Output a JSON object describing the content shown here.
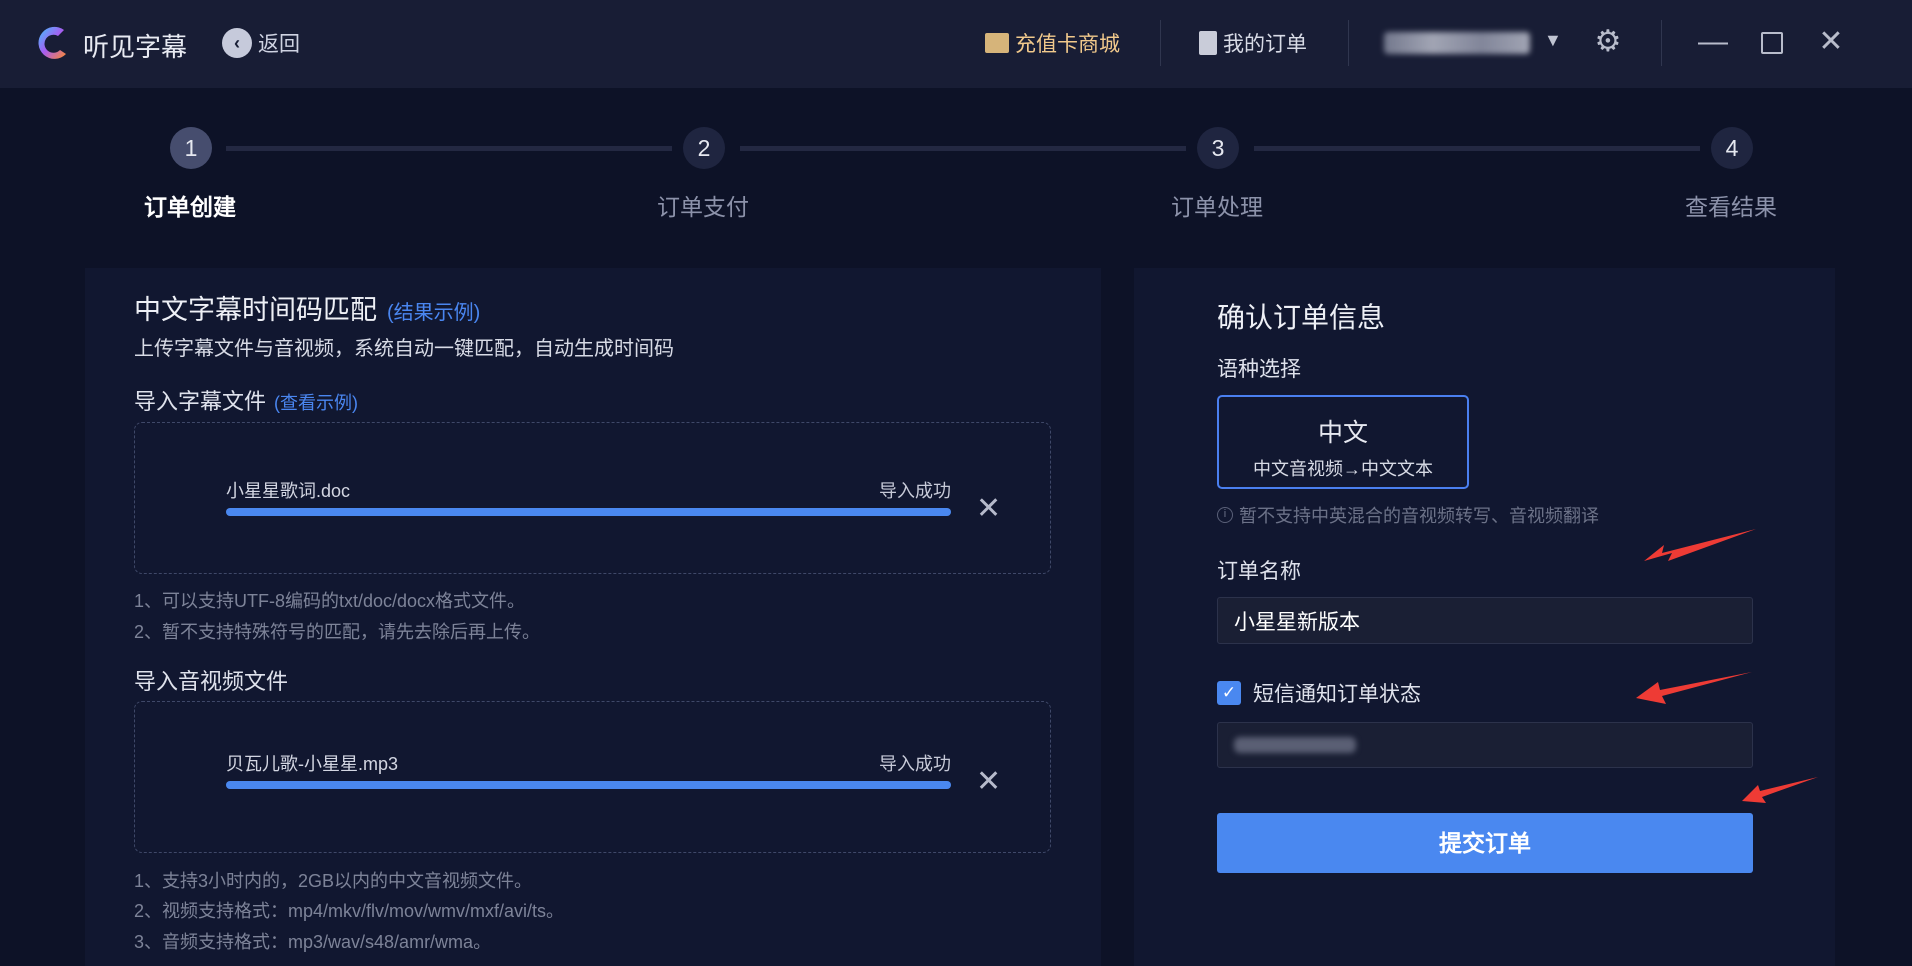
{
  "header": {
    "app_title": "听见字幕",
    "back_label": "返回",
    "recharge_label": "充值卡商城",
    "orders_label": "我的订单",
    "recharge_color": "#f1c98c"
  },
  "steps": [
    {
      "num": "1",
      "label": "订单创建",
      "active": true
    },
    {
      "num": "2",
      "label": "订单支付"
    },
    {
      "num": "3",
      "label": "订单处理"
    },
    {
      "num": "4",
      "label": "查看结果"
    }
  ],
  "left": {
    "title": "中文字幕时间码匹配",
    "title_link": "(结果示例)",
    "subtitle": "上传字幕文件与音视频，系统自动一键匹配，自动生成时间码",
    "subtitle_section": {
      "title": "导入字幕文件",
      "link": "(查看示例)",
      "file": "小星星歌词.doc",
      "status": "导入成功",
      "progress": 100,
      "notes": [
        "1、可以支持UTF-8编码的txt/doc/docx格式文件。",
        "2、暂不支持特殊符号的匹配，请先去除后再上传。"
      ]
    },
    "media_section": {
      "title": "导入音视频文件",
      "file": "贝瓦儿歌-小星星.mp3",
      "status": "导入成功",
      "progress": 100,
      "notes": [
        "1、支持3小时内的，2GB以内的中文音视频文件。",
        "2、视频支持格式：mp4/mkv/flv/mov/wmv/mxf/avi/ts。",
        "3、音频支持格式：mp3/wav/s48/amr/wma。"
      ]
    }
  },
  "right": {
    "title": "确认订单信息",
    "lang_label": "语种选择",
    "lang_card": {
      "title": "中文",
      "desc": "中文音视频→中文文本"
    },
    "hint": "暂不支持中英混合的音视频转写、音视频翻译",
    "name_label": "订单名称",
    "name_value": "小星星新版本",
    "sms_label": "短信通知订单状态",
    "sms_checked": true,
    "submit_label": "提交订单"
  },
  "colors": {
    "accent": "#4a88f0",
    "annotation_arrow": "#ee3b35"
  }
}
